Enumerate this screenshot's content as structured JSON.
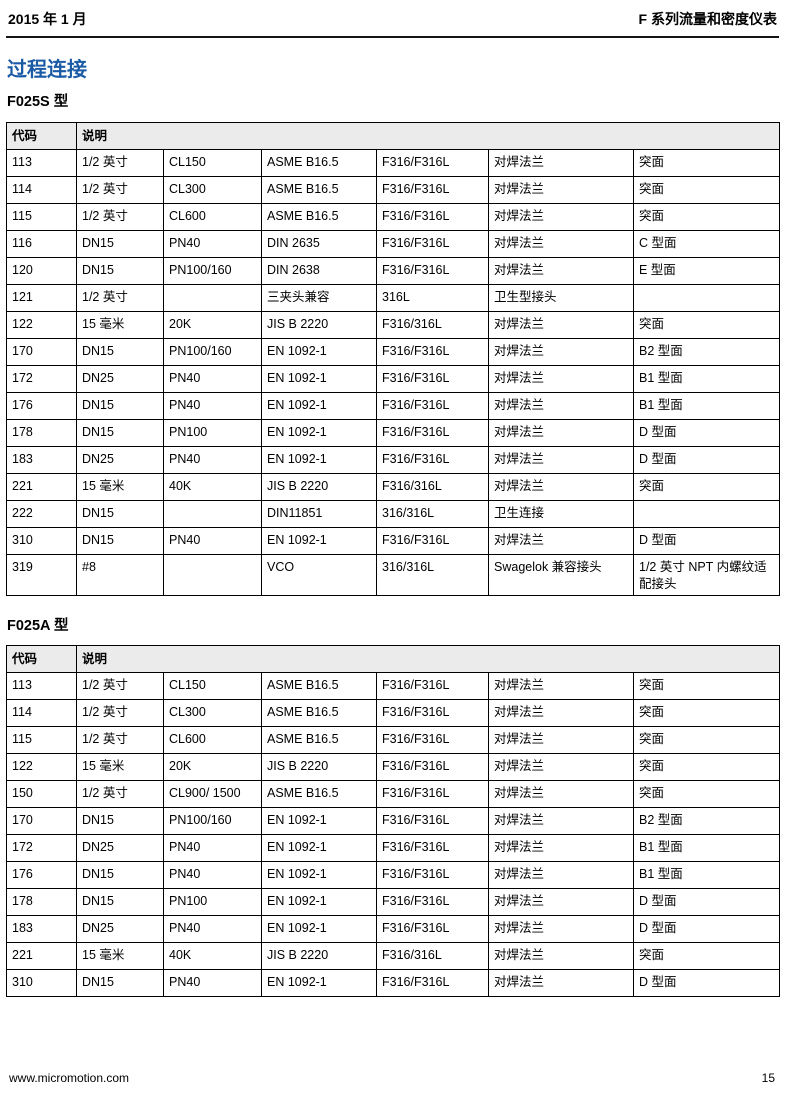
{
  "header": {
    "left": "2015 年 1 月",
    "right": "F 系列流量和密度仪表"
  },
  "page_title": "过程连接",
  "sections": [
    {
      "title": "F025S 型",
      "table": {
        "col_headers": [
          "代码",
          "说明"
        ],
        "rows": [
          [
            "113",
            "1/2 英寸",
            "CL150",
            "ASME B16.5",
            "F316/F316L",
            "对焊法兰",
            "突面"
          ],
          [
            "114",
            "1/2 英寸",
            "CL300",
            "ASME B16.5",
            "F316/F316L",
            "对焊法兰",
            "突面"
          ],
          [
            "115",
            "1/2 英寸",
            "CL600",
            "ASME B16.5",
            "F316/F316L",
            "对焊法兰",
            "突面"
          ],
          [
            "116",
            "DN15",
            "PN40",
            "DIN 2635",
            "F316/F316L",
            "对焊法兰",
            "C 型面"
          ],
          [
            "120",
            "DN15",
            "PN100/160",
            "DIN 2638",
            "F316/F316L",
            "对焊法兰",
            "E 型面"
          ],
          [
            "121",
            "1/2 英寸",
            "",
            "三夹头兼容",
            "316L",
            "卫生型接头",
            ""
          ],
          [
            "122",
            "15 毫米",
            "20K",
            "JIS B 2220",
            "F316/316L",
            "对焊法兰",
            "突面"
          ],
          [
            "170",
            "DN15",
            "PN100/160",
            "EN 1092-1",
            "F316/F316L",
            "对焊法兰",
            "B2 型面"
          ],
          [
            "172",
            "DN25",
            "PN40",
            "EN 1092-1",
            "F316/F316L",
            "对焊法兰",
            "B1 型面"
          ],
          [
            "176",
            "DN15",
            "PN40",
            "EN 1092-1",
            "F316/F316L",
            "对焊法兰",
            "B1 型面"
          ],
          [
            "178",
            "DN15",
            "PN100",
            "EN 1092-1",
            "F316/F316L",
            "对焊法兰",
            "D 型面"
          ],
          [
            "183",
            "DN25",
            "PN40",
            "EN 1092-1",
            "F316/F316L",
            "对焊法兰",
            "D 型面"
          ],
          [
            "221",
            "15 毫米",
            "40K",
            "JIS B 2220",
            "F316/316L",
            "对焊法兰",
            "突面"
          ],
          [
            "222",
            "DN15",
            "",
            "DIN11851",
            "316/316L",
            "卫生连接",
            ""
          ],
          [
            "310",
            "DN15",
            "PN40",
            "EN 1092-1",
            "F316/F316L",
            "对焊法兰",
            "D 型面"
          ],
          [
            "319",
            "#8",
            "",
            "VCO",
            "316/316L",
            "Swagelok 兼容接头",
            "1/2 英寸 NPT 内螺纹适配接头"
          ]
        ]
      }
    },
    {
      "title": "F025A 型",
      "table": {
        "col_headers": [
          "代码",
          "说明"
        ],
        "rows": [
          [
            "113",
            "1/2 英寸",
            "CL150",
            "ASME B16.5",
            "F316/F316L",
            "对焊法兰",
            "突面"
          ],
          [
            "114",
            "1/2 英寸",
            "CL300",
            "ASME B16.5",
            "F316/F316L",
            "对焊法兰",
            "突面"
          ],
          [
            "115",
            "1/2 英寸",
            "CL600",
            "ASME B16.5",
            "F316/F316L",
            "对焊法兰",
            "突面"
          ],
          [
            "122",
            "15 毫米",
            "20K",
            "JIS B 2220",
            "F316/F316L",
            "对焊法兰",
            "突面"
          ],
          [
            "150",
            "1/2 英寸",
            "CL900/ 1500",
            "ASME B16.5",
            "F316/F316L",
            "对焊法兰",
            "突面"
          ],
          [
            "170",
            "DN15",
            "PN100/160",
            "EN 1092-1",
            "F316/F316L",
            "对焊法兰",
            "B2 型面"
          ],
          [
            "172",
            "DN25",
            "PN40",
            "EN 1092-1",
            "F316/F316L",
            "对焊法兰",
            "B1 型面"
          ],
          [
            "176",
            "DN15",
            "PN40",
            "EN 1092-1",
            "F316/F316L",
            "对焊法兰",
            "B1 型面"
          ],
          [
            "178",
            "DN15",
            "PN100",
            "EN 1092-1",
            "F316/F316L",
            "对焊法兰",
            "D 型面"
          ],
          [
            "183",
            "DN25",
            "PN40",
            "EN 1092-1",
            "F316/F316L",
            "对焊法兰",
            "D 型面"
          ],
          [
            "221",
            "15 毫米",
            "40K",
            "JIS B 2220",
            "F316/316L",
            "对焊法兰",
            "突面"
          ],
          [
            "310",
            "DN15",
            "PN40",
            "EN 1092-1",
            "F316/F316L",
            "对焊法兰",
            "D 型面"
          ]
        ]
      }
    }
  ],
  "footer": {
    "left": "www.micromotion.com",
    "page_number": "15"
  },
  "colors": {
    "accent_blue": "#1b5ba6",
    "table_header_bg": "#ebebeb",
    "border": "#000000"
  }
}
